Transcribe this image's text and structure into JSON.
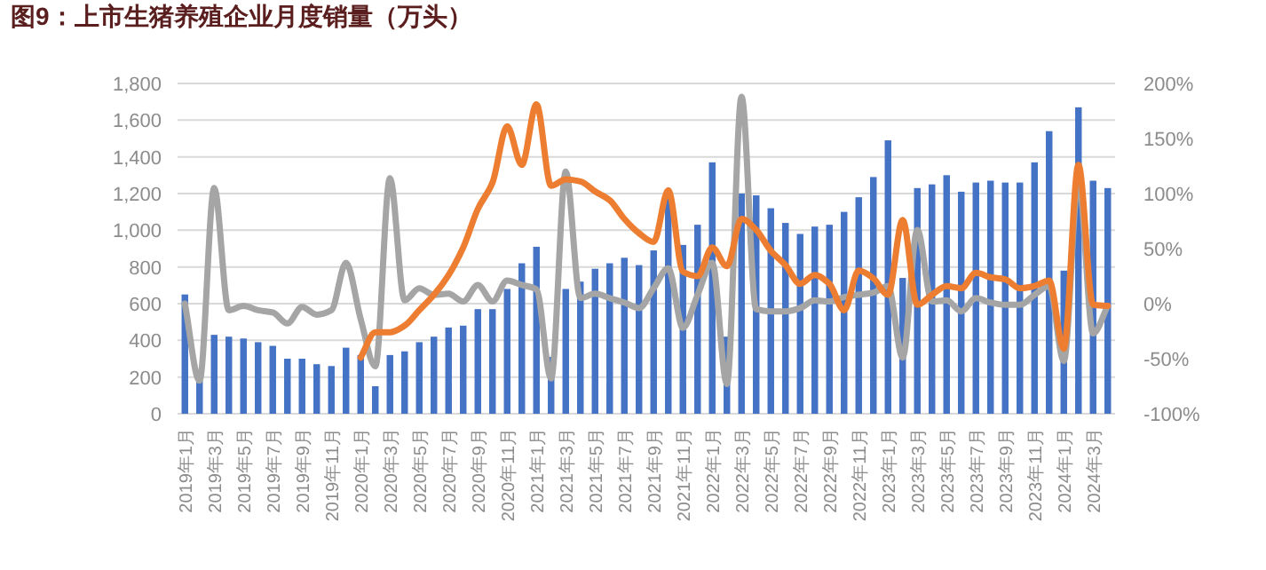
{
  "chart_data": {
    "type": "bar",
    "title": "图9：上市生猪养殖企业月度销量（万头）",
    "categories": [
      "2019年1月",
      null,
      "2019年3月",
      null,
      "2019年5月",
      null,
      "2019年7月",
      null,
      "2019年9月",
      null,
      "2019年11月",
      null,
      "2020年1月",
      null,
      "2020年3月",
      null,
      "2020年5月",
      null,
      "2020年7月",
      null,
      "2020年9月",
      null,
      "2020年11月",
      null,
      "2021年1月",
      null,
      "2021年3月",
      null,
      "2021年5月",
      null,
      "2021年7月",
      null,
      "2021年9月",
      null,
      "2021年11月",
      null,
      "2022年1月",
      null,
      "2022年3月",
      null,
      "2022年5月",
      null,
      "2022年7月",
      null,
      "2022年9月",
      null,
      "2022年11月",
      null,
      "2023年1月",
      null,
      "2023年3月",
      null,
      "2023年5月",
      null,
      "2023年7月",
      null,
      "2023年9月",
      null,
      "2023年11月",
      null,
      "2024年1月",
      null,
      "2024年3月",
      null
    ],
    "series": [
      {
        "color": "#4472c4",
        "values": [
          650,
          180,
          430,
          420,
          410,
          390,
          370,
          300,
          300,
          270,
          260,
          360,
          320,
          150,
          320,
          340,
          390,
          420,
          470,
          480,
          570,
          570,
          680,
          820,
          910,
          310,
          680,
          720,
          790,
          820,
          850,
          810,
          890,
          1190,
          920,
          1030,
          1370,
          420,
          1200,
          1190,
          1120,
          1040,
          980,
          1020,
          1030,
          1100,
          1180,
          1290,
          1490,
          740,
          1230,
          1250,
          1300,
          1210,
          1260,
          1270,
          1260,
          1260,
          1370,
          1540,
          780,
          1670,
          1270,
          1230
        ]
      },
      {
        "type": "line",
        "axis": "y2",
        "color": "#a5a5a5",
        "values": [
          0,
          -70,
          105,
          -6,
          -2,
          -6,
          -8,
          -18,
          -3,
          -10,
          -6,
          37,
          -14,
          -57,
          114,
          3,
          14,
          8,
          9,
          2,
          17,
          2,
          21,
          17,
          13,
          -68,
          120,
          5,
          9,
          5,
          1,
          -4,
          14,
          32,
          -22,
          8,
          37,
          -73,
          188,
          -5,
          -7,
          -7,
          -4,
          3,
          2,
          6,
          8,
          10,
          16,
          -49,
          67,
          2,
          3,
          -7,
          5,
          1,
          -1,
          -1,
          8,
          16,
          -52,
          112,
          -27,
          -2
        ]
      },
      {
        "type": "line",
        "axis": "y2",
        "color": "#ed7d31",
        "values": [
          null,
          null,
          null,
          null,
          null,
          null,
          null,
          null,
          null,
          null,
          null,
          null,
          -49,
          -26,
          -26,
          -20,
          -6,
          8,
          26,
          51,
          86,
          110,
          161,
          126,
          181,
          107,
          113,
          111,
          102,
          94,
          77,
          64,
          56,
          103,
          29,
          25,
          51,
          34,
          77,
          67,
          48,
          35,
          18,
          26,
          18,
          -6,
          30,
          23,
          8,
          76,
          -1,
          8,
          16,
          14,
          28,
          24,
          22,
          14,
          16,
          21,
          -41,
          126,
          -1,
          -2
        ]
      }
    ],
    "ylim": [
      0,
      1800
    ],
    "yticks": [
      0,
      {
        "value": 200,
        "label": "200"
      },
      {
        "value": 400,
        "label": "400"
      },
      {
        "value": 600,
        "label": "600"
      },
      {
        "value": 800,
        "label": "800"
      },
      {
        "value": 1000,
        "label": "1,000"
      },
      {
        "value": 1200,
        "label": "1,200"
      },
      {
        "value": 1400,
        "label": "1,400"
      },
      {
        "value": 1600,
        "label": "1,600"
      },
      {
        "value": 1800,
        "label": "1,800"
      }
    ],
    "y2lim": [
      -100,
      200
    ],
    "y2ticks": [
      {
        "value": -100,
        "label": "-100%"
      },
      {
        "value": -50,
        "label": "-50%"
      },
      {
        "value": 0,
        "label": "0%"
      },
      {
        "value": 50,
        "label": "50%"
      },
      {
        "value": 100,
        "label": "100%"
      },
      {
        "value": 150,
        "label": "150%"
      },
      {
        "value": 200,
        "label": "200%"
      }
    ],
    "grid": "y",
    "marker": "none",
    "line_style": "solid"
  }
}
